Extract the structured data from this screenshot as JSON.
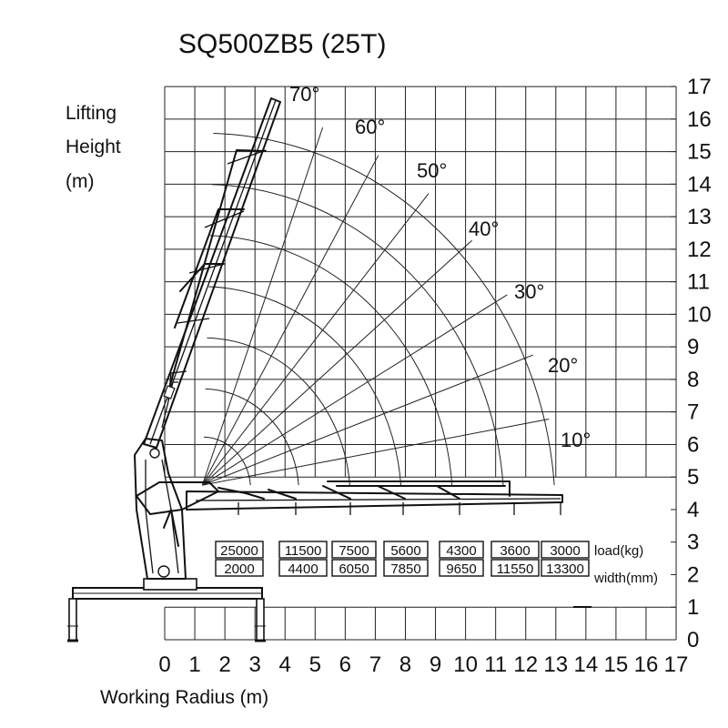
{
  "title": "SQ500ZB5  (25T)",
  "y_label_lines": [
    "Lifting",
    "Height",
    "(m)"
  ],
  "x_label": "Working Radius (m)",
  "x_ticks": [
    "0",
    "1",
    "2",
    "3",
    "4",
    "5",
    "6",
    "7",
    "8",
    "9",
    "10",
    "11",
    "12",
    "13",
    "14",
    "15",
    "16",
    "17"
  ],
  "y_ticks": [
    "0",
    "1",
    "2",
    "3",
    "4",
    "5",
    "6",
    "7",
    "8",
    "9",
    "10",
    "11",
    "12",
    "13",
    "14",
    "15",
    "16",
    "17"
  ],
  "angles": [
    {
      "label": "70°",
      "deg": 70
    },
    {
      "label": "60°",
      "deg": 60
    },
    {
      "label": "50°",
      "deg": 50
    },
    {
      "label": "40°",
      "deg": 40
    },
    {
      "label": "30°",
      "deg": 30
    },
    {
      "label": "20°",
      "deg": 20
    },
    {
      "label": "10°",
      "deg": 10
    }
  ],
  "table": {
    "load_label": "load(kg)",
    "width_label": "width(mm)",
    "loads": [
      "25000",
      "11500",
      "7500",
      "5600",
      "4300",
      "3600",
      "3000"
    ],
    "widths": [
      "2000",
      "4400",
      "6050",
      "7850",
      "9650",
      "11550",
      "13300"
    ]
  }
}
